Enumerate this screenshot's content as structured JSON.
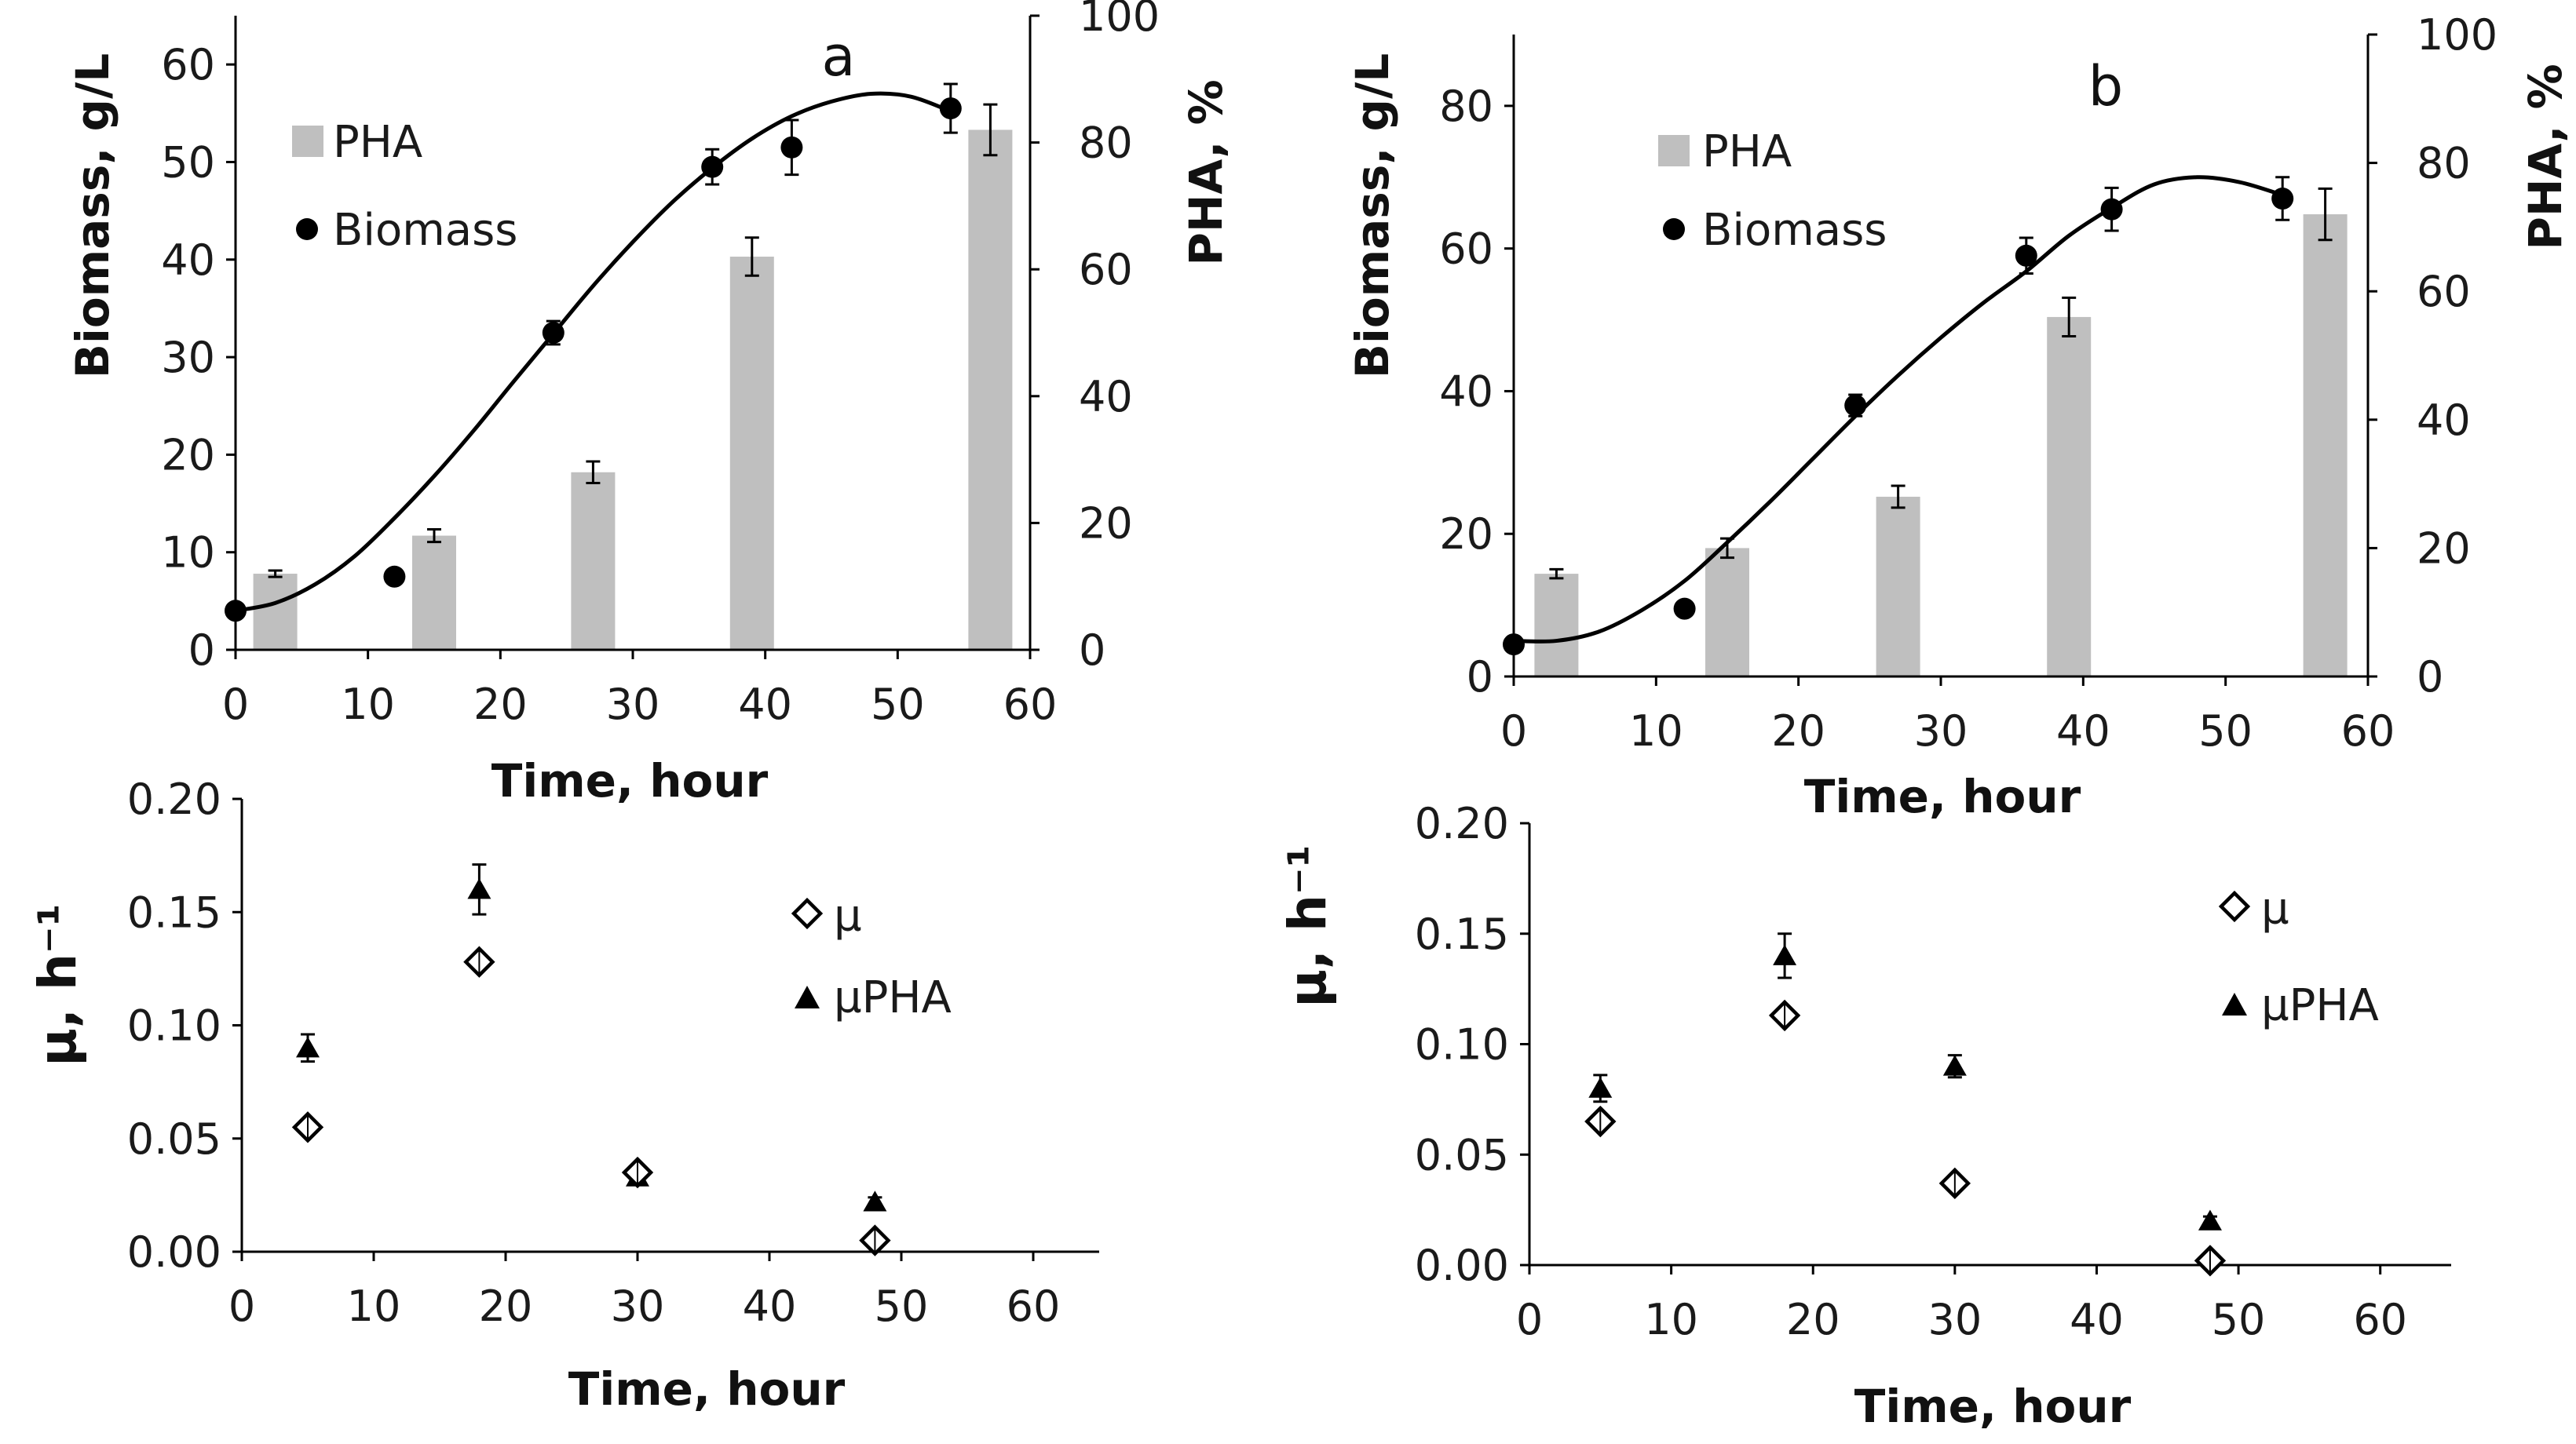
{
  "colors": {
    "bar": "#bfbfbf",
    "ink": "#000000",
    "axis": "#000000"
  },
  "chart_data": [
    {
      "id": "a-top",
      "type": "bar+scatter",
      "panel_label": "a",
      "xlabel": "Time, hour",
      "ylabel": "Biomass, g/L",
      "y2label": "PHA, %",
      "xlim": [
        0,
        60
      ],
      "ylim": [
        0,
        65
      ],
      "y2lim": [
        0,
        100
      ],
      "x_ticks": [
        0,
        10,
        20,
        30,
        40,
        50,
        60
      ],
      "y_ticks": [
        0,
        10,
        20,
        30,
        40,
        50,
        60
      ],
      "y2_ticks": [
        0,
        20,
        40,
        60,
        80,
        100
      ],
      "legend": {
        "bar": "PHA",
        "points": "Biomass",
        "position": "top-left"
      },
      "pha_bars": [
        {
          "x": 3,
          "value": 12,
          "err": 0.5
        },
        {
          "x": 15,
          "value": 18,
          "err": 1
        },
        {
          "x": 27,
          "value": 28,
          "err": 1.7
        },
        {
          "x": 39,
          "value": 62,
          "err": 3
        },
        {
          "x": 57,
          "value": 82,
          "err": 4
        }
      ],
      "biomass": [
        {
          "x": 0,
          "value": 4,
          "err": 0
        },
        {
          "x": 12,
          "value": 7.5,
          "err": 0
        },
        {
          "x": 24,
          "value": 32.5,
          "err": 1.2
        },
        {
          "x": 36,
          "value": 49.5,
          "err": 1.8
        },
        {
          "x": 42,
          "value": 51.5,
          "err": 2.8
        },
        {
          "x": 54,
          "value": 55.5,
          "err": 2.5
        }
      ],
      "fit_curve": [
        [
          0,
          4
        ],
        [
          3,
          4.8
        ],
        [
          6,
          6.7
        ],
        [
          9,
          9.6
        ],
        [
          12,
          13.5
        ],
        [
          15,
          17.8
        ],
        [
          18,
          22.5
        ],
        [
          21,
          27.5
        ],
        [
          24,
          32.4
        ],
        [
          27,
          37.3
        ],
        [
          30,
          41.8
        ],
        [
          33,
          45.9
        ],
        [
          36,
          49.4
        ],
        [
          39,
          52.4
        ],
        [
          42,
          54.7
        ],
        [
          45,
          56.2
        ],
        [
          48,
          57
        ],
        [
          51,
          56.7
        ],
        [
          54,
          55.2
        ]
      ]
    },
    {
      "id": "b-top",
      "type": "bar+scatter",
      "panel_label": "b",
      "xlabel": "Time, hour",
      "ylabel": "Biomass, g/L",
      "y2label": "PHA, %",
      "xlim": [
        0,
        60
      ],
      "ylim": [
        0,
        90
      ],
      "y2lim": [
        0,
        100
      ],
      "x_ticks": [
        0,
        10,
        20,
        30,
        40,
        50,
        60
      ],
      "y_ticks": [
        0,
        20,
        40,
        60,
        80
      ],
      "y2_ticks": [
        0,
        20,
        40,
        60,
        80,
        100
      ],
      "legend": {
        "bar": "PHA",
        "points": "Biomass",
        "position": "top-left"
      },
      "pha_bars": [
        {
          "x": 3,
          "value": 16,
          "err": 0.7
        },
        {
          "x": 15,
          "value": 20,
          "err": 1.5
        },
        {
          "x": 27,
          "value": 28,
          "err": 1.7
        },
        {
          "x": 39,
          "value": 56,
          "err": 3
        },
        {
          "x": 57,
          "value": 72,
          "err": 4
        }
      ],
      "biomass": [
        {
          "x": 0,
          "value": 4.5,
          "err": 0
        },
        {
          "x": 12,
          "value": 9.5,
          "err": 0
        },
        {
          "x": 24,
          "value": 38,
          "err": 1.5
        },
        {
          "x": 36,
          "value": 59,
          "err": 2.5
        },
        {
          "x": 42,
          "value": 65.5,
          "err": 3
        },
        {
          "x": 54,
          "value": 67,
          "err": 3
        }
      ],
      "fit_curve": [
        [
          0,
          5
        ],
        [
          3,
          5
        ],
        [
          6,
          6.3
        ],
        [
          9,
          9.3
        ],
        [
          12,
          13.4
        ],
        [
          15,
          18.8
        ],
        [
          18,
          24.5
        ],
        [
          21,
          30.5
        ],
        [
          24,
          36.5
        ],
        [
          27,
          42.2
        ],
        [
          30,
          47.5
        ],
        [
          33,
          52.4
        ],
        [
          36,
          56.8
        ],
        [
          39,
          61.8
        ],
        [
          42,
          65.7
        ],
        [
          45,
          69
        ],
        [
          48,
          70
        ],
        [
          51,
          69.3
        ],
        [
          54,
          67.5
        ]
      ]
    },
    {
      "id": "a-bottom",
      "type": "scatter",
      "xlabel": "Time, hour",
      "ylabel": "µ, h⁻¹",
      "xlim": [
        0,
        65
      ],
      "ylim": [
        0,
        0.2
      ],
      "x_ticks": [
        0,
        10,
        20,
        30,
        40,
        50,
        60
      ],
      "y_ticks": [
        "0.00",
        "0.05",
        "0.10",
        "0.15",
        "0.20"
      ],
      "legend": {
        "mu": "µ",
        "mupha": "µPHA",
        "position": "top-right"
      },
      "mu": [
        {
          "x": 5,
          "value": 0.055,
          "err": 0.002
        },
        {
          "x": 18,
          "value": 0.128,
          "err": 0.003
        },
        {
          "x": 30,
          "value": 0.035,
          "err": 0.001
        },
        {
          "x": 48,
          "value": 0.005,
          "err": 0.002
        }
      ],
      "mupha": [
        {
          "x": 5,
          "value": 0.09,
          "err": 0.006
        },
        {
          "x": 18,
          "value": 0.16,
          "err": 0.011
        },
        {
          "x": 30,
          "value": 0.033,
          "err": 0.002
        },
        {
          "x": 48,
          "value": 0.022,
          "err": 0.002
        }
      ]
    },
    {
      "id": "b-bottom",
      "type": "scatter",
      "xlabel": "Time, hour",
      "ylabel": "µ, h⁻¹",
      "xlim": [
        0,
        65
      ],
      "ylim": [
        0,
        0.2
      ],
      "x_ticks": [
        0,
        10,
        20,
        30,
        40,
        50,
        60
      ],
      "y_ticks": [
        "0.00",
        "0.05",
        "0.10",
        "0.15",
        "0.20"
      ],
      "legend": {
        "mu": "µ",
        "mupha": "µPHA",
        "position": "top-right"
      },
      "mu": [
        {
          "x": 5,
          "value": 0.065,
          "err": 0.002
        },
        {
          "x": 18,
          "value": 0.113,
          "err": 0.003
        },
        {
          "x": 30,
          "value": 0.037,
          "err": 0.002
        },
        {
          "x": 48,
          "value": 0.002,
          "err": 0.002
        }
      ],
      "mupha": [
        {
          "x": 5,
          "value": 0.08,
          "err": 0.006
        },
        {
          "x": 18,
          "value": 0.14,
          "err": 0.01
        },
        {
          "x": 30,
          "value": 0.09,
          "err": 0.005
        },
        {
          "x": 48,
          "value": 0.02,
          "err": 0.002
        }
      ]
    }
  ]
}
